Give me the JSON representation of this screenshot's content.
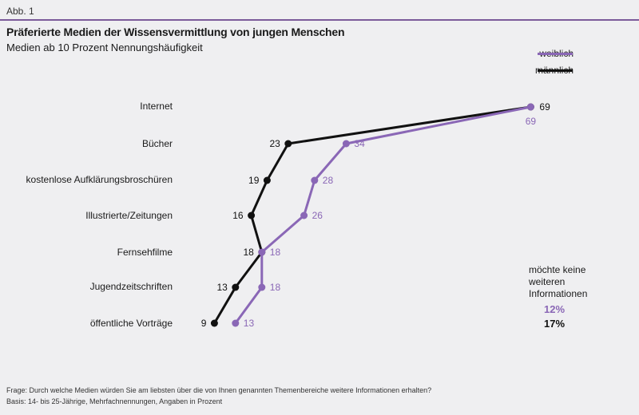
{
  "figure_label": "Abb. 1",
  "chart_data": {
    "type": "line",
    "title": "Präferierte Medien der Wissensvermittlung von jungen Menschen",
    "subtitle": "Medien ab 10 Prozent Nennungshäufigkeit",
    "categories": [
      "Internet",
      "Bücher",
      "kostenlose Aufklärungsbroschüren",
      "Illustrierte/Zeitungen",
      "Fernsehfilme",
      "Jugendzeitschriften",
      "öffentliche Vorträge"
    ],
    "series": [
      {
        "name": "weiblich",
        "color": "#8a67b6",
        "values": [
          69,
          34,
          28,
          26,
          18,
          18,
          13
        ]
      },
      {
        "name": "männlich",
        "color": "#111111",
        "values": [
          69,
          23,
          19,
          16,
          18,
          13,
          9
        ]
      }
    ],
    "legend_position": "top-right"
  },
  "side_note": {
    "text": "möchte keine weiteren Informationen",
    "weiblich": "12%",
    "maennlich": "17%"
  },
  "footnotes": {
    "question": "Frage: Durch welche Medien würden Sie am liebsten über die von Ihnen genannten Themenbereiche weitere Informationen erhalten?",
    "basis": "Basis: 14- bis 25-Jährige, Mehrfachnennungen, Angaben in Prozent"
  }
}
